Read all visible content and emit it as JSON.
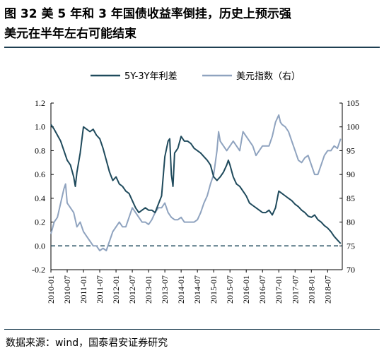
{
  "title_line1": "图 32  美 5 年和 3 年国债收益率倒挂，历史上预示强",
  "title_line2": "美元在半年左右可能结束",
  "source": "数据来源：wind，国泰君安证券研究",
  "colors": {
    "series1": "#1f4a5c",
    "series2": "#8fa3bf",
    "rule": "#1f3f52"
  },
  "chart_data": {
    "type": "line",
    "legend_position": "top",
    "grid": false,
    "x_ticks": [
      "2010-01",
      "2010-07",
      "2011-01",
      "2011-07",
      "2012-01",
      "2012-07",
      "2013-01",
      "2013-07",
      "2014-01",
      "2014-07",
      "2015-01",
      "2015-07",
      "2016-01",
      "2016-07",
      "2017-01",
      "2017-07",
      "2018-01",
      "2018-07"
    ],
    "x_range": [
      2010.0,
      2018.95
    ],
    "y_left": {
      "min": -0.2,
      "max": 1.2,
      "ticks": [
        "-0.2",
        "0.0",
        "0.2",
        "0.4",
        "0.6",
        "0.8",
        "1.0",
        "1.2"
      ]
    },
    "y_right": {
      "min": 70,
      "max": 105,
      "ticks": [
        "70",
        "75",
        "80",
        "85",
        "90",
        "95",
        "100",
        "105"
      ]
    },
    "zero_line": {
      "axis": "left",
      "value": 0.0,
      "style": "dashed"
    },
    "series": [
      {
        "name": "5Y-3Y年利差",
        "axis": "left",
        "points": [
          [
            2010.0,
            1.02
          ],
          [
            2010.1,
            0.98
          ],
          [
            2010.2,
            0.93
          ],
          [
            2010.3,
            0.88
          ],
          [
            2010.4,
            0.8
          ],
          [
            2010.5,
            0.72
          ],
          [
            2010.6,
            0.68
          ],
          [
            2010.7,
            0.58
          ],
          [
            2010.75,
            0.5
          ],
          [
            2010.8,
            0.62
          ],
          [
            2010.9,
            0.78
          ],
          [
            2011.0,
            1.0
          ],
          [
            2011.1,
            0.98
          ],
          [
            2011.2,
            0.96
          ],
          [
            2011.3,
            0.98
          ],
          [
            2011.4,
            0.93
          ],
          [
            2011.5,
            0.9
          ],
          [
            2011.6,
            0.82
          ],
          [
            2011.7,
            0.72
          ],
          [
            2011.8,
            0.62
          ],
          [
            2011.9,
            0.55
          ],
          [
            2012.0,
            0.58
          ],
          [
            2012.1,
            0.52
          ],
          [
            2012.2,
            0.5
          ],
          [
            2012.3,
            0.46
          ],
          [
            2012.4,
            0.44
          ],
          [
            2012.5,
            0.38
          ],
          [
            2012.6,
            0.32
          ],
          [
            2012.7,
            0.28
          ],
          [
            2012.8,
            0.3
          ],
          [
            2012.9,
            0.32
          ],
          [
            2013.0,
            0.3
          ],
          [
            2013.1,
            0.3
          ],
          [
            2013.2,
            0.28
          ],
          [
            2013.3,
            0.35
          ],
          [
            2013.4,
            0.42
          ],
          [
            2013.5,
            0.75
          ],
          [
            2013.6,
            0.88
          ],
          [
            2013.65,
            0.9
          ],
          [
            2013.7,
            0.6
          ],
          [
            2013.75,
            0.5
          ],
          [
            2013.8,
            0.78
          ],
          [
            2013.9,
            0.82
          ],
          [
            2014.0,
            0.92
          ],
          [
            2014.1,
            0.88
          ],
          [
            2014.2,
            0.88
          ],
          [
            2014.3,
            0.86
          ],
          [
            2014.4,
            0.82
          ],
          [
            2014.5,
            0.8
          ],
          [
            2014.6,
            0.78
          ],
          [
            2014.7,
            0.75
          ],
          [
            2014.8,
            0.72
          ],
          [
            2014.9,
            0.68
          ],
          [
            2015.0,
            0.58
          ],
          [
            2015.1,
            0.55
          ],
          [
            2015.2,
            0.58
          ],
          [
            2015.3,
            0.62
          ],
          [
            2015.4,
            0.68
          ],
          [
            2015.45,
            0.72
          ],
          [
            2015.5,
            0.68
          ],
          [
            2015.6,
            0.58
          ],
          [
            2015.7,
            0.52
          ],
          [
            2015.8,
            0.5
          ],
          [
            2015.9,
            0.46
          ],
          [
            2016.0,
            0.42
          ],
          [
            2016.1,
            0.36
          ],
          [
            2016.2,
            0.34
          ],
          [
            2016.3,
            0.32
          ],
          [
            2016.4,
            0.3
          ],
          [
            2016.5,
            0.28
          ],
          [
            2016.6,
            0.28
          ],
          [
            2016.7,
            0.3
          ],
          [
            2016.8,
            0.26
          ],
          [
            2016.9,
            0.32
          ],
          [
            2017.0,
            0.46
          ],
          [
            2017.1,
            0.44
          ],
          [
            2017.2,
            0.42
          ],
          [
            2017.3,
            0.4
          ],
          [
            2017.4,
            0.38
          ],
          [
            2017.5,
            0.35
          ],
          [
            2017.6,
            0.33
          ],
          [
            2017.7,
            0.3
          ],
          [
            2017.8,
            0.28
          ],
          [
            2017.9,
            0.25
          ],
          [
            2018.0,
            0.24
          ],
          [
            2018.1,
            0.26
          ],
          [
            2018.2,
            0.22
          ],
          [
            2018.3,
            0.2
          ],
          [
            2018.4,
            0.17
          ],
          [
            2018.5,
            0.15
          ],
          [
            2018.6,
            0.12
          ],
          [
            2018.7,
            0.08
          ],
          [
            2018.8,
            0.05
          ],
          [
            2018.9,
            0.02
          ]
        ]
      },
      {
        "name": "美元指数（右）",
        "axis": "right",
        "points": [
          [
            2010.0,
            77.5
          ],
          [
            2010.1,
            80
          ],
          [
            2010.2,
            81
          ],
          [
            2010.3,
            84
          ],
          [
            2010.4,
            87
          ],
          [
            2010.45,
            88
          ],
          [
            2010.5,
            84
          ],
          [
            2010.6,
            83
          ],
          [
            2010.7,
            82
          ],
          [
            2010.8,
            79
          ],
          [
            2010.9,
            80
          ],
          [
            2011.0,
            78
          ],
          [
            2011.1,
            77
          ],
          [
            2011.2,
            76
          ],
          [
            2011.3,
            75
          ],
          [
            2011.4,
            75
          ],
          [
            2011.5,
            74
          ],
          [
            2011.6,
            74.5
          ],
          [
            2011.7,
            74
          ],
          [
            2011.8,
            76
          ],
          [
            2011.9,
            78
          ],
          [
            2012.0,
            79
          ],
          [
            2012.1,
            80
          ],
          [
            2012.2,
            79
          ],
          [
            2012.3,
            79
          ],
          [
            2012.4,
            81
          ],
          [
            2012.5,
            83
          ],
          [
            2012.6,
            82
          ],
          [
            2012.7,
            81
          ],
          [
            2012.8,
            80
          ],
          [
            2012.9,
            80
          ],
          [
            2013.0,
            79.5
          ],
          [
            2013.1,
            80.5
          ],
          [
            2013.2,
            82
          ],
          [
            2013.3,
            83
          ],
          [
            2013.4,
            83
          ],
          [
            2013.5,
            84
          ],
          [
            2013.6,
            82
          ],
          [
            2013.7,
            81
          ],
          [
            2013.8,
            80.5
          ],
          [
            2013.9,
            80.5
          ],
          [
            2014.0,
            81
          ],
          [
            2014.1,
            80
          ],
          [
            2014.2,
            80
          ],
          [
            2014.3,
            80
          ],
          [
            2014.4,
            80
          ],
          [
            2014.5,
            80.5
          ],
          [
            2014.6,
            82
          ],
          [
            2014.7,
            84
          ],
          [
            2014.8,
            85.5
          ],
          [
            2014.9,
            88
          ],
          [
            2015.0,
            90
          ],
          [
            2015.1,
            95
          ],
          [
            2015.15,
            99
          ],
          [
            2015.2,
            97
          ],
          [
            2015.3,
            96
          ],
          [
            2015.4,
            95
          ],
          [
            2015.5,
            96
          ],
          [
            2015.6,
            97
          ],
          [
            2015.7,
            96
          ],
          [
            2015.8,
            95
          ],
          [
            2015.9,
            99
          ],
          [
            2016.0,
            98
          ],
          [
            2016.1,
            97
          ],
          [
            2016.2,
            96
          ],
          [
            2016.3,
            94
          ],
          [
            2016.4,
            95
          ],
          [
            2016.5,
            96
          ],
          [
            2016.6,
            96
          ],
          [
            2016.7,
            96
          ],
          [
            2016.8,
            98
          ],
          [
            2016.9,
            101
          ],
          [
            2017.0,
            102.5
          ],
          [
            2017.05,
            101
          ],
          [
            2017.1,
            100.5
          ],
          [
            2017.2,
            100
          ],
          [
            2017.3,
            99
          ],
          [
            2017.4,
            97
          ],
          [
            2017.5,
            95
          ],
          [
            2017.6,
            93
          ],
          [
            2017.7,
            92.5
          ],
          [
            2017.8,
            93.5
          ],
          [
            2017.9,
            94
          ],
          [
            2018.0,
            92
          ],
          [
            2018.1,
            90
          ],
          [
            2018.2,
            90
          ],
          [
            2018.3,
            92
          ],
          [
            2018.4,
            94
          ],
          [
            2018.5,
            95
          ],
          [
            2018.6,
            95
          ],
          [
            2018.7,
            96
          ],
          [
            2018.8,
            95.5
          ],
          [
            2018.9,
            97.5
          ]
        ]
      }
    ]
  }
}
